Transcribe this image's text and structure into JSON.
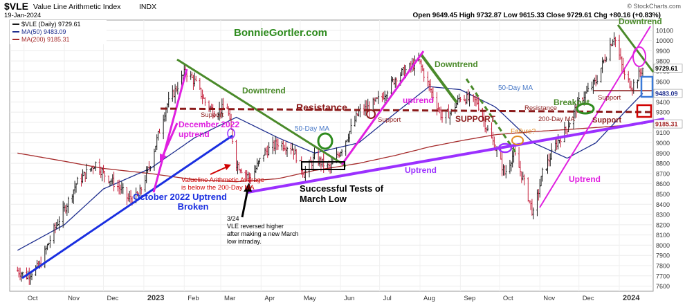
{
  "header": {
    "title": "$VLE",
    "index_name": "Value Line Arithmetic Index",
    "exchange": "INDX",
    "date": "19-Jan-2024",
    "watermark": "© StockCharts.com",
    "ohlc_text": "Open 9649.45  High 9732.87  Low 9615.33  Close 9729.61  Chg +80.16 (+0.83%)",
    "legend_price": "$VLE (Daily) 9729.61",
    "legend_ma50": "MA(50) 9483.09",
    "legend_ma200": "MA(200) 9185.31"
  },
  "colors": {
    "price_up": "#1a1a1a",
    "price_down": "#c41e3a",
    "ma50": "#1f2f8f",
    "ma200": "#a52a2a",
    "downtrend": "#4a8a2a",
    "uptrend_magenta": "#e020e0",
    "uptrend_purple": "#9b30ff",
    "october_uptrend": "#1a2fe0",
    "resistance": "#8b1a1a",
    "brand_green": "#2e8b1e",
    "fifty_day_label": "#4a7ac8",
    "failure": "#e08a20",
    "annot_red": "#d00000"
  },
  "chart_data": {
    "type": "line",
    "title": "$VLE Value Line Arithmetic Index INDX",
    "ylim": [
      7550,
      10200
    ],
    "yticks": [
      7600,
      7700,
      7800,
      7900,
      8000,
      8100,
      8200,
      8300,
      8400,
      8500,
      8600,
      8700,
      8800,
      8900,
      9000,
      9100,
      9200,
      9300,
      9400,
      9500,
      9600,
      9700,
      9800,
      9900,
      10000,
      10100
    ],
    "xticks": [
      "Oct",
      "Nov",
      "Dec",
      "2023",
      "Feb",
      "Mar",
      "Apr",
      "May",
      "Jun",
      "Jul",
      "Aug",
      "Sep",
      "Oct",
      "Nov",
      "Dec",
      "2024"
    ],
    "price_right_label": "9729.61",
    "ma50_right_label": "9483.09",
    "ma200_right_label": "9185.31",
    "series": [
      {
        "name": "$VLE (Daily)",
        "x": [
          "2022-09-26",
          "2022-10-03",
          "2022-10-13",
          "2022-10-24",
          "2022-11-01",
          "2022-11-10",
          "2022-11-25",
          "2022-12-01",
          "2022-12-14",
          "2022-12-20",
          "2022-12-28",
          "2023-01-06",
          "2023-01-18",
          "2023-02-02",
          "2023-02-09",
          "2023-02-17",
          "2023-02-24",
          "2023-03-06",
          "2023-03-13",
          "2023-03-24",
          "2023-04-03",
          "2023-04-14",
          "2023-04-25",
          "2023-05-04",
          "2023-05-12",
          "2023-05-24",
          "2023-06-02",
          "2023-06-15",
          "2023-06-23",
          "2023-07-03",
          "2023-07-14",
          "2023-07-26",
          "2023-07-31",
          "2023-08-08",
          "2023-08-18",
          "2023-08-25",
          "2023-09-01",
          "2023-09-14",
          "2023-09-21",
          "2023-09-28",
          "2023-10-05",
          "2023-10-12",
          "2023-10-19",
          "2023-10-27",
          "2023-11-03",
          "2023-11-14",
          "2023-11-22",
          "2023-12-01",
          "2023-12-14",
          "2023-12-20",
          "2023-12-28",
          "2024-01-05",
          "2024-01-11",
          "2024-01-19"
        ],
        "values": [
          7750,
          7700,
          7800,
          8150,
          8350,
          8600,
          8800,
          8700,
          8550,
          8450,
          8480,
          8800,
          9350,
          9700,
          9600,
          9400,
          9300,
          9350,
          8800,
          8650,
          8900,
          9000,
          8950,
          8700,
          8850,
          8750,
          8950,
          9300,
          9350,
          9450,
          9650,
          9750,
          9800,
          9550,
          9250,
          9300,
          9450,
          9400,
          9150,
          8950,
          8700,
          8900,
          8650,
          8300,
          8700,
          9000,
          9150,
          9400,
          9600,
          9800,
          10050,
          9650,
          9550,
          9729.61
        ]
      },
      {
        "name": "MA(50)",
        "x": [
          "2022-09-26",
          "2022-11-01",
          "2022-12-01",
          "2023-01-06",
          "2023-02-09",
          "2023-03-13",
          "2023-04-14",
          "2023-05-12",
          "2023-06-15",
          "2023-07-14",
          "2023-08-08",
          "2023-09-01",
          "2023-09-28",
          "2023-10-27",
          "2023-11-22",
          "2023-12-14",
          "2024-01-05",
          "2024-01-19"
        ],
        "values": [
          7950,
          8200,
          8550,
          8750,
          9050,
          9250,
          9050,
          8900,
          9000,
          9300,
          9550,
          9520,
          9350,
          9000,
          8850,
          9000,
          9300,
          9483.09
        ]
      },
      {
        "name": "MA(200)",
        "x": [
          "2022-09-26",
          "2022-11-01",
          "2022-12-01",
          "2023-01-06",
          "2023-02-09",
          "2023-03-13",
          "2023-04-14",
          "2023-05-12",
          "2023-06-15",
          "2023-07-14",
          "2023-08-08",
          "2023-09-01",
          "2023-09-28",
          "2023-10-27",
          "2023-11-22",
          "2023-12-14",
          "2024-01-05",
          "2024-01-19"
        ],
        "values": [
          8900,
          8820,
          8750,
          8700,
          8640,
          8620,
          8650,
          8730,
          8800,
          8880,
          8960,
          9020,
          9080,
          9110,
          9130,
          9150,
          9170,
          9185.31
        ]
      }
    ],
    "annotations": [
      "BonnieGortler.com",
      "Downtrend",
      "Downtrend",
      "Downtrend",
      "Resistance",
      "Support",
      "Support",
      "Support",
      "SUPPORT",
      "Support",
      "Resistance",
      "Support",
      "50-Day MA",
      "50-Day MA",
      "200-Day MA",
      "December 2022 uptrend",
      "uptrend",
      "Uptrend",
      "Uptrend",
      "October 2022 Uptrend Broken",
      "Valueline Arithmetic Average is below the 200-Day MA",
      "Successful Tests of March Low",
      "3/24 VLE reversed higher after making a new March low intraday.",
      "Breakout",
      "Failure?"
    ]
  },
  "labels": {
    "brand": "BonnieGortler.com",
    "downtrend_1": "Downtrend",
    "downtrend_2": "Downtrend",
    "downtrend_3": "Downtrend",
    "resistance_main": "Resistance",
    "resistance_small": "Resistance",
    "support_feb": "Support",
    "support_jul": "Support",
    "support_sep": "SUPPORT",
    "support_dec": "Support",
    "support_jan": "Support",
    "ma50_label_may": "50-Day MA",
    "ma50_label_sep": "50-Day MA",
    "ma200_label": "200-Day MA",
    "december_uptrend_1": "December 2022",
    "december_uptrend_2": "uptrend",
    "uptrend_jul": "uptrend",
    "uptrend_purple": "Uptrend",
    "uptrend_nov": "Uptrend",
    "october_broken_1": "October 2022 Uptrend",
    "october_broken_2": "Broken",
    "below_200_1": "Valueline Arithmetic Average",
    "below_200_2": "is below the 200-Day MA",
    "tests_1": "Successful Tests of",
    "tests_2": "March Low",
    "note_1": "3/24",
    "note_2": "VLE reversed higher",
    "note_3": "after making a new March",
    "note_4": "low intraday.",
    "breakout": "Breakout",
    "failure": "Failure?"
  }
}
